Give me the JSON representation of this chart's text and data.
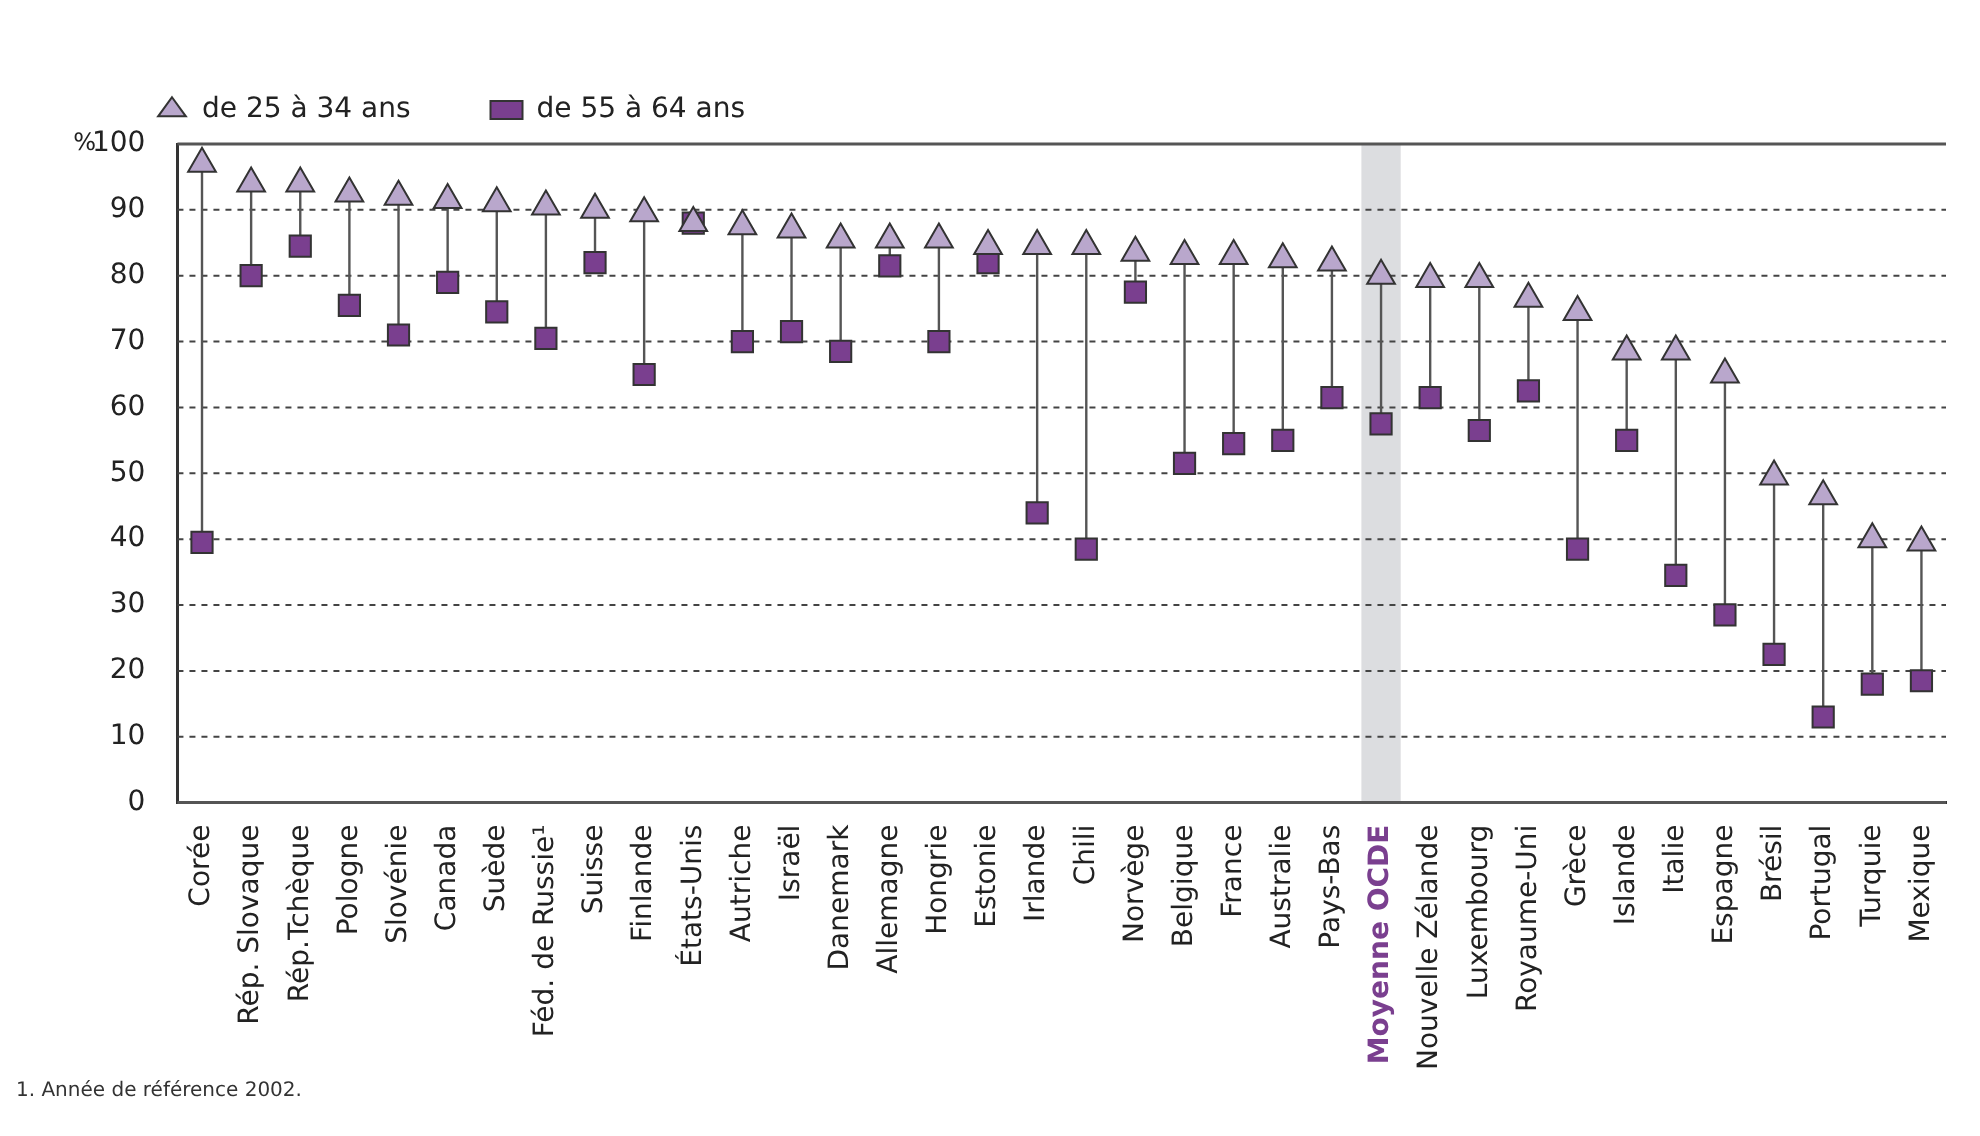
{
  "chart_data": {
    "type": "scatter",
    "ylabel": "%",
    "categories": [
      "Corée",
      "Rép. Slovaque",
      "Rép.Tchèque",
      "Pologne",
      "Slovénie",
      "Canada",
      "Suède",
      "Féd. de Russie¹",
      "Suisse",
      "Finlande",
      "États-Unis",
      "Autriche",
      "Israël",
      "Danemark",
      "Allemagne",
      "Hongrie",
      "Estonie",
      "Irlande",
      "Chili",
      "Norvège",
      "Belgique",
      "France",
      "Australie",
      "Pays-Bas",
      "Moyenne OCDE",
      "Nouvelle Zélande",
      "Luxembourg",
      "Royaume-Uni",
      "Grèce",
      "Islande",
      "Italie",
      "Espagne",
      "Brésil",
      "Portugal",
      "Turquie",
      "Mexique"
    ],
    "series": [
      {
        "name": "de 25 à 34 ans",
        "color": "#b9a7cc",
        "marker": "triangle",
        "values": [
          97,
          94,
          94,
          92.5,
          92,
          91.5,
          91,
          90.5,
          90,
          89.5,
          88,
          87.5,
          87,
          85.5,
          85.5,
          85.5,
          84.5,
          84.5,
          84.5,
          83.5,
          83,
          83,
          82.5,
          82,
          80,
          79.5,
          79.5,
          76.5,
          74.5,
          68.5,
          68.5,
          65,
          49.5,
          46.5,
          40,
          39.5
        ]
      },
      {
        "name": "de 55 à 64 ans",
        "color": "#7a3f8f",
        "marker": "square",
        "values": [
          39.5,
          80,
          84.5,
          75.5,
          71,
          79,
          74.5,
          70.5,
          82,
          65,
          88,
          70,
          71.5,
          68.5,
          81.5,
          70,
          82,
          44,
          38.5,
          77.5,
          51.5,
          54.5,
          55,
          61.5,
          57.5,
          61.5,
          56.5,
          62.5,
          38.5,
          55,
          34.5,
          28.5,
          22.5,
          13,
          18,
          18.5
        ]
      }
    ],
    "ylim": [
      0,
      100
    ],
    "yticks": [
      0,
      10,
      20,
      30,
      40,
      50,
      60,
      70,
      80,
      90,
      100
    ],
    "grid": "y",
    "legend": "top left",
    "bands": [
      {
        "axis": "x",
        "from": "Moyenne OCDE",
        "to": "Moyenne OCDE",
        "color": "#dcdde0"
      }
    ],
    "annotations": [
      "1. Année de référence 2002."
    ]
  }
}
